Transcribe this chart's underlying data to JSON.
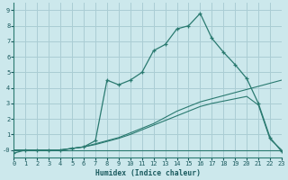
{
  "xlabel": "Humidex (Indice chaleur)",
  "bg_color": "#cce8ec",
  "grid_color": "#aacdd4",
  "line_color": "#2a7a70",
  "xlim": [
    0,
    23
  ],
  "ylim": [
    -0.5,
    9.5
  ],
  "xticks": [
    0,
    1,
    2,
    3,
    4,
    5,
    6,
    7,
    8,
    9,
    10,
    11,
    12,
    13,
    14,
    15,
    16,
    17,
    18,
    19,
    20,
    21,
    22,
    23
  ],
  "yticks": [
    0,
    1,
    2,
    3,
    4,
    5,
    6,
    7,
    8,
    9
  ],
  "ytick_labels": [
    "-0",
    "1",
    "2",
    "3",
    "4",
    "5",
    "6",
    "7",
    "8",
    "9"
  ],
  "curve_flat_x": [
    0,
    1,
    2,
    3,
    4,
    5,
    6,
    7,
    8,
    9,
    10,
    11,
    12,
    13,
    14,
    15,
    16,
    17,
    18,
    19,
    20,
    21,
    22,
    23
  ],
  "curve_flat_y": [
    0,
    0,
    0,
    0,
    0,
    0,
    0,
    0,
    0,
    0,
    0,
    0,
    0,
    0,
    0,
    0,
    0,
    0,
    0,
    0,
    0,
    0,
    0,
    0
  ],
  "curve_diag1_x": [
    0,
    1,
    2,
    3,
    4,
    5,
    6,
    7,
    8,
    9,
    10,
    11,
    12,
    13,
    14,
    15,
    16,
    17,
    18,
    19,
    20,
    21,
    22,
    23
  ],
  "curve_diag1_y": [
    0,
    0,
    0,
    0,
    0,
    0.1,
    0.2,
    0.4,
    0.6,
    0.8,
    1.1,
    1.4,
    1.7,
    2.1,
    2.5,
    2.8,
    3.1,
    3.3,
    3.5,
    3.7,
    3.9,
    4.1,
    4.3,
    4.5
  ],
  "curve_diag2_x": [
    0,
    1,
    2,
    3,
    4,
    5,
    6,
    7,
    8,
    9,
    10,
    11,
    12,
    13,
    14,
    15,
    16,
    17,
    18,
    19,
    20,
    21,
    22,
    23
  ],
  "curve_diag2_y": [
    0,
    0,
    0,
    0,
    0,
    0.1,
    0.2,
    0.35,
    0.55,
    0.75,
    1.0,
    1.3,
    1.6,
    1.9,
    2.2,
    2.5,
    2.8,
    3.0,
    3.15,
    3.3,
    3.45,
    2.9,
    0.7,
    0
  ],
  "curve_main_x": [
    0,
    1,
    2,
    3,
    4,
    5,
    6,
    7,
    8,
    9,
    10,
    11,
    12,
    13,
    14,
    15,
    16,
    17,
    18,
    19,
    20,
    21,
    22,
    23
  ],
  "curve_main_y": [
    -0.2,
    0,
    0,
    0,
    0,
    0.1,
    0.2,
    0.6,
    4.5,
    4.2,
    4.5,
    5.0,
    6.4,
    6.8,
    7.8,
    8.0,
    8.8,
    7.2,
    6.3,
    5.5,
    4.6,
    3.0,
    0.8,
    -0.1
  ]
}
